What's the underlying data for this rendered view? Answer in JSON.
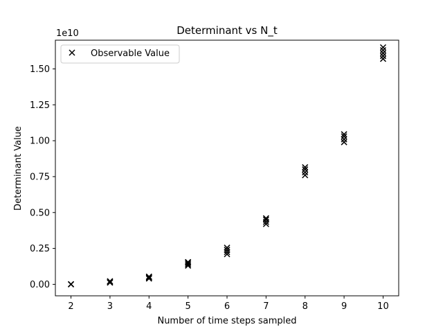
{
  "chart_data": {
    "type": "scatter",
    "title": "Determinant vs N_t",
    "xlabel": "Number of time steps sampled",
    "ylabel": "Determinant Value",
    "y_multiplier_label": "1e10",
    "xlim": [
      1.6,
      10.4
    ],
    "ylim": [
      -0.08,
      1.7
    ],
    "x_ticks": [
      2,
      3,
      4,
      5,
      6,
      7,
      8,
      9,
      10
    ],
    "y_ticks": [
      0.0,
      0.25,
      0.5,
      0.75,
      1.0,
      1.25,
      1.5
    ],
    "y_tick_labels": [
      "0.00",
      "0.25",
      "0.50",
      "0.75",
      "1.00",
      "1.25",
      "1.50"
    ],
    "y_unit_note": "values in units of 1e10",
    "marker": "x",
    "marker_color": "#000000",
    "grid": false,
    "legend": {
      "placement": "top-left",
      "entries": [
        "Observable Value"
      ]
    },
    "series": [
      {
        "name": "Observable Value",
        "points": [
          {
            "x": 2,
            "y": 0.0
          },
          {
            "x": 2,
            "y": 0.001
          },
          {
            "x": 3,
            "y": 0.012
          },
          {
            "x": 3,
            "y": 0.018
          },
          {
            "x": 3,
            "y": 0.022
          },
          {
            "x": 4,
            "y": 0.04
          },
          {
            "x": 4,
            "y": 0.045
          },
          {
            "x": 4,
            "y": 0.05
          },
          {
            "x": 4,
            "y": 0.054
          },
          {
            "x": 5,
            "y": 0.13
          },
          {
            "x": 5,
            "y": 0.14
          },
          {
            "x": 5,
            "y": 0.15
          },
          {
            "x": 5,
            "y": 0.155
          },
          {
            "x": 6,
            "y": 0.21
          },
          {
            "x": 6,
            "y": 0.225
          },
          {
            "x": 6,
            "y": 0.24
          },
          {
            "x": 6,
            "y": 0.255
          },
          {
            "x": 7,
            "y": 0.42
          },
          {
            "x": 7,
            "y": 0.435
          },
          {
            "x": 7,
            "y": 0.45
          },
          {
            "x": 7,
            "y": 0.46
          },
          {
            "x": 8,
            "y": 0.76
          },
          {
            "x": 8,
            "y": 0.78
          },
          {
            "x": 8,
            "y": 0.8
          },
          {
            "x": 8,
            "y": 0.815
          },
          {
            "x": 9,
            "y": 0.99
          },
          {
            "x": 9,
            "y": 1.01
          },
          {
            "x": 9,
            "y": 1.03
          },
          {
            "x": 9,
            "y": 1.045
          },
          {
            "x": 10,
            "y": 1.57
          },
          {
            "x": 10,
            "y": 1.59
          },
          {
            "x": 10,
            "y": 1.61
          },
          {
            "x": 10,
            "y": 1.63
          },
          {
            "x": 10,
            "y": 1.65
          }
        ]
      }
    ]
  }
}
